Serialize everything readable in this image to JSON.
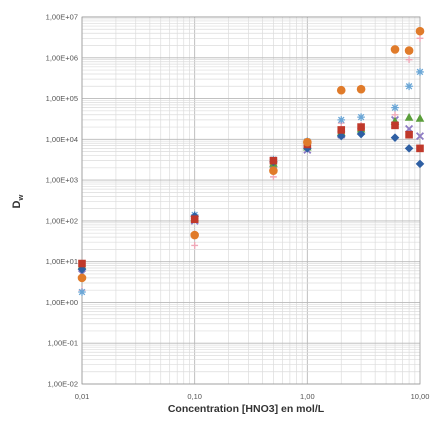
{
  "chart_data": {
    "type": "scatter",
    "title": "",
    "xlabel": "Concentration [HNO3]   en mol/L",
    "ylabel": "D",
    "ylabel_subscript": "w",
    "x_scale": "log",
    "y_scale": "log",
    "xlim": [
      0.01,
      10
    ],
    "ylim": [
      0.01,
      10000000
    ],
    "grid": true,
    "legend": "none",
    "x_ticks": [
      {
        "value": 0.01,
        "label": "0,01"
      },
      {
        "value": 0.1,
        "label": "0,10"
      },
      {
        "value": 1,
        "label": "1,00"
      },
      {
        "value": 10,
        "label": "10,00"
      }
    ],
    "y_ticks": [
      {
        "value": 0.01,
        "label": "1,00E-02"
      },
      {
        "value": 0.1,
        "label": "1,00E-01"
      },
      {
        "value": 1,
        "label": "1,00E+00"
      },
      {
        "value": 10,
        "label": "1,00E+01"
      },
      {
        "value": 100,
        "label": "1,00E+02"
      },
      {
        "value": 1000,
        "label": "1,00E+03"
      },
      {
        "value": 10000,
        "label": "1,00E+04"
      },
      {
        "value": 100000,
        "label": "1,00E+05"
      },
      {
        "value": 1000000,
        "label": "1,00E+06"
      },
      {
        "value": 10000000,
        "label": "1,00E+07"
      }
    ],
    "series": [
      {
        "marker": "diamond",
        "color": "#2e5fa3",
        "points": [
          [
            0.01,
            6.5
          ],
          [
            0.1,
            130
          ],
          [
            0.5,
            2800
          ],
          [
            1,
            6000
          ],
          [
            2,
            12000
          ],
          [
            3,
            13500
          ],
          [
            6,
            11000
          ],
          [
            8,
            6000
          ],
          [
            10,
            2500
          ]
        ]
      },
      {
        "marker": "square",
        "color": "#c0392b",
        "points": [
          [
            0.01,
            9
          ],
          [
            0.1,
            110
          ],
          [
            0.5,
            3000
          ],
          [
            1,
            7500
          ],
          [
            2,
            17000
          ],
          [
            3,
            20000
          ],
          [
            6,
            22000
          ],
          [
            8,
            13000
          ],
          [
            10,
            6000
          ]
        ]
      },
      {
        "marker": "triangle",
        "color": "#5a9e3a",
        "points": [
          [
            0.01,
            8
          ],
          [
            0.1,
            120
          ],
          [
            0.5,
            2600
          ],
          [
            1,
            6500
          ],
          [
            2,
            15000
          ],
          [
            3,
            18000
          ],
          [
            6,
            28000
          ],
          [
            8,
            35000
          ],
          [
            10,
            33000
          ]
        ]
      },
      {
        "marker": "x",
        "color": "#8e7cc3",
        "points": [
          [
            0.01,
            5
          ],
          [
            0.1,
            100
          ],
          [
            0.5,
            2400
          ],
          [
            1,
            5500
          ],
          [
            2,
            13000
          ],
          [
            3,
            16000
          ],
          [
            6,
            30000
          ],
          [
            8,
            18000
          ],
          [
            10,
            12000
          ]
        ]
      },
      {
        "marker": "star",
        "color": "#6aa6d6",
        "points": [
          [
            0.01,
            1.8
          ],
          [
            0.1,
            140
          ],
          [
            0.5,
            3200
          ],
          [
            1,
            9000
          ],
          [
            2,
            30000
          ],
          [
            3,
            35000
          ],
          [
            6,
            60000
          ],
          [
            8,
            200000
          ],
          [
            10,
            450000
          ]
        ]
      },
      {
        "marker": "circle",
        "color": "#e07b2a",
        "points": [
          [
            0.01,
            4
          ],
          [
            0.1,
            45
          ],
          [
            0.5,
            1700
          ],
          [
            1,
            8500
          ],
          [
            2,
            160000
          ],
          [
            3,
            170000
          ],
          [
            6,
            1600000
          ],
          [
            8,
            1500000
          ],
          [
            10,
            4500000
          ]
        ]
      },
      {
        "marker": "plus",
        "color": "#f0a8b8",
        "points": [
          [
            0.01,
            2
          ],
          [
            0.1,
            25
          ],
          [
            0.5,
            1200
          ],
          [
            1,
            7000
          ],
          [
            2,
            25000
          ],
          [
            3,
            22000
          ],
          [
            6,
            40000
          ],
          [
            8,
            900000
          ],
          [
            10,
            3000000
          ]
        ]
      }
    ]
  }
}
